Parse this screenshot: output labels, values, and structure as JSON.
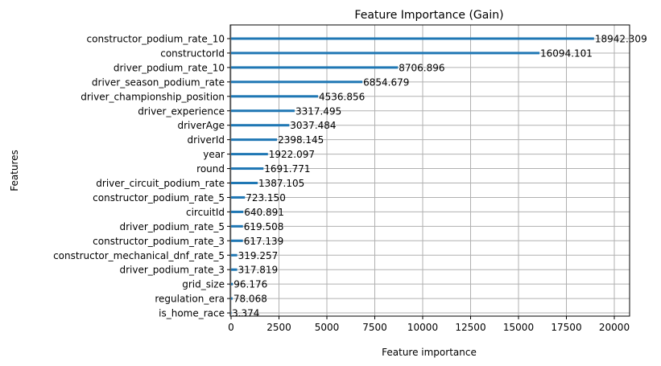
{
  "chart_data": {
    "type": "bar",
    "orientation": "horizontal",
    "title": "Feature Importance (Gain)",
    "xlabel": "Feature importance",
    "ylabel": "Features",
    "xlim": [
      0,
      20800
    ],
    "xticks": [
      0,
      2500,
      5000,
      7500,
      10000,
      12500,
      15000,
      17500,
      20000
    ],
    "grid": true,
    "bar_color": "#1f77b4",
    "categories": [
      "constructor_podium_rate_10",
      "constructorId",
      "driver_podium_rate_10",
      "driver_season_podium_rate",
      "driver_championship_position",
      "driver_experience",
      "driverAge",
      "driverId",
      "year",
      "round",
      "driver_circuit_podium_rate",
      "constructor_podium_rate_5",
      "circuitId",
      "driver_podium_rate_5",
      "constructor_podium_rate_3",
      "constructor_mechanical_dnf_rate_5",
      "driver_podium_rate_3",
      "grid_size",
      "regulation_era",
      "is_home_race"
    ],
    "values": [
      18942.309,
      16094.101,
      8706.896,
      6854.679,
      4536.856,
      3317.495,
      3037.484,
      2398.145,
      1922.097,
      1691.771,
      1387.105,
      723.15,
      640.891,
      619.508,
      617.139,
      319.257,
      317.819,
      96.176,
      78.068,
      3.374
    ],
    "data_labels": [
      "18942.309",
      "16094.101",
      "8706.896",
      "6854.679",
      "4536.856",
      "3317.495",
      "3037.484",
      "2398.145",
      "1922.097",
      "1691.771",
      "1387.105",
      "723.150",
      "640.891",
      "619.508",
      "617.139",
      "319.257",
      "317.819",
      "96.176",
      "78.068",
      "3.374"
    ]
  }
}
